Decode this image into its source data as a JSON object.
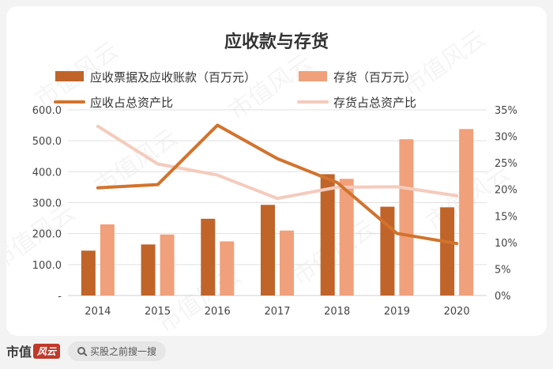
{
  "chart_data": {
    "type": "bar",
    "title": "应收款与存货",
    "categories": [
      "2014",
      "2015",
      "2016",
      "2017",
      "2018",
      "2019",
      "2020"
    ],
    "bar_series": [
      {
        "name": "应收票据及应收账款（百万元）",
        "color": "#c0642a",
        "values": [
          145,
          165,
          248,
          293,
          392,
          287,
          285
        ]
      },
      {
        "name": "存货（百万元）",
        "color": "#f0a07a",
        "values": [
          230,
          197,
          175,
          210,
          377,
          505,
          538
        ]
      }
    ],
    "line_series": [
      {
        "name": "应收占总资产比",
        "color": "#d2732d",
        "values": [
          20.3,
          20.9,
          32.1,
          25.8,
          21.3,
          11.7,
          9.8
        ]
      },
      {
        "name": "存货占总资产比",
        "color": "#f4cbbd",
        "values": [
          31.9,
          24.8,
          22.7,
          18.3,
          20.4,
          20.5,
          18.8
        ]
      }
    ],
    "left_axis": {
      "ylim": [
        0,
        600
      ],
      "ticks": [
        "-",
        "100.0",
        "200.0",
        "300.0",
        "400.0",
        "500.0",
        "600.0"
      ]
    },
    "right_axis": {
      "ylim": [
        0,
        35
      ],
      "ticks": [
        "0%",
        "5%",
        "10%",
        "15%",
        "20%",
        "25%",
        "30%",
        "35%"
      ]
    },
    "grid": true,
    "legend_position": "top"
  },
  "watermark": {
    "text": "市值风云"
  },
  "footer": {
    "brand_text": "市值",
    "brand_mark": "风云",
    "search_text": "买股之前搜一搜"
  }
}
